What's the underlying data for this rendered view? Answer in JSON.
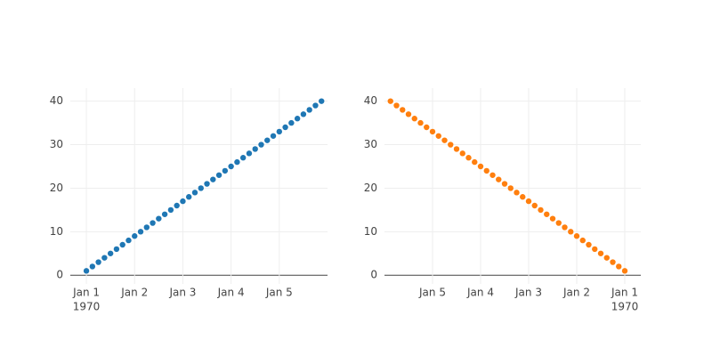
{
  "chart_data": [
    {
      "type": "scatter",
      "x": [
        "1970-01-01 00:00",
        "1970-01-01 03:00",
        "1970-01-01 06:00",
        "1970-01-01 09:00",
        "1970-01-01 12:00",
        "1970-01-01 15:00",
        "1970-01-01 18:00",
        "1970-01-01 21:00",
        "1970-01-02 00:00",
        "1970-01-02 03:00",
        "1970-01-02 06:00",
        "1970-01-02 09:00",
        "1970-01-02 12:00",
        "1970-01-02 15:00",
        "1970-01-02 18:00",
        "1970-01-02 21:00",
        "1970-01-03 00:00",
        "1970-01-03 03:00",
        "1970-01-03 06:00",
        "1970-01-03 09:00",
        "1970-01-03 12:00",
        "1970-01-03 15:00",
        "1970-01-03 18:00",
        "1970-01-03 21:00",
        "1970-01-04 00:00",
        "1970-01-04 03:00",
        "1970-01-04 06:00",
        "1970-01-04 09:00",
        "1970-01-04 12:00",
        "1970-01-04 15:00",
        "1970-01-04 18:00",
        "1970-01-04 21:00",
        "1970-01-05 00:00",
        "1970-01-05 03:00",
        "1970-01-05 06:00",
        "1970-01-05 09:00",
        "1970-01-05 12:00",
        "1970-01-05 15:00",
        "1970-01-05 18:00",
        "1970-01-05 21:00"
      ],
      "series": [
        {
          "color": "#1f77b4",
          "values": [
            1,
            2,
            3,
            4,
            5,
            6,
            7,
            8,
            9,
            10,
            11,
            12,
            13,
            14,
            15,
            16,
            17,
            18,
            19,
            20,
            21,
            22,
            23,
            24,
            25,
            26,
            27,
            28,
            29,
            30,
            31,
            32,
            33,
            34,
            35,
            36,
            37,
            38,
            39,
            40
          ]
        }
      ],
      "xlim": [
        "1969-12-31 16:00",
        "1970-01-06 00:00"
      ],
      "xticks": [
        {
          "value": "1970-01-01 00:00",
          "label": "Jan 1",
          "year": "1970"
        },
        {
          "value": "1970-01-02 00:00",
          "label": "Jan 2"
        },
        {
          "value": "1970-01-03 00:00",
          "label": "Jan 3"
        },
        {
          "value": "1970-01-04 00:00",
          "label": "Jan 4"
        },
        {
          "value": "1970-01-05 00:00",
          "label": "Jan 5"
        }
      ],
      "ylim": [
        -2,
        43
      ],
      "yticks": [
        0,
        10,
        20,
        30,
        40
      ],
      "grid": true
    },
    {
      "type": "scatter",
      "x": [
        "1970-01-01 00:00",
        "1970-01-01 03:00",
        "1970-01-01 06:00",
        "1970-01-01 09:00",
        "1970-01-01 12:00",
        "1970-01-01 15:00",
        "1970-01-01 18:00",
        "1970-01-01 21:00",
        "1970-01-02 00:00",
        "1970-01-02 03:00",
        "1970-01-02 06:00",
        "1970-01-02 09:00",
        "1970-01-02 12:00",
        "1970-01-02 15:00",
        "1970-01-02 18:00",
        "1970-01-02 21:00",
        "1970-01-03 00:00",
        "1970-01-03 03:00",
        "1970-01-03 06:00",
        "1970-01-03 09:00",
        "1970-01-03 12:00",
        "1970-01-03 15:00",
        "1970-01-03 18:00",
        "1970-01-03 21:00",
        "1970-01-04 00:00",
        "1970-01-04 03:00",
        "1970-01-04 06:00",
        "1970-01-04 09:00",
        "1970-01-04 12:00",
        "1970-01-04 15:00",
        "1970-01-04 18:00",
        "1970-01-04 21:00",
        "1970-01-05 00:00",
        "1970-01-05 03:00",
        "1970-01-05 06:00",
        "1970-01-05 09:00",
        "1970-01-05 12:00",
        "1970-01-05 15:00",
        "1970-01-05 18:00",
        "1970-01-05 21:00"
      ],
      "series": [
        {
          "color": "#ff7f0e",
          "values": [
            1,
            2,
            3,
            4,
            5,
            6,
            7,
            8,
            9,
            10,
            11,
            12,
            13,
            14,
            15,
            16,
            17,
            18,
            19,
            20,
            21,
            22,
            23,
            24,
            25,
            26,
            27,
            28,
            29,
            30,
            31,
            32,
            33,
            34,
            35,
            36,
            37,
            38,
            39,
            40
          ]
        }
      ],
      "xlim": [
        "1970-01-06 00:00",
        "1969-12-31 16:00"
      ],
      "xticks": [
        {
          "value": "1970-01-05 00:00",
          "label": "Jan 5"
        },
        {
          "value": "1970-01-04 00:00",
          "label": "Jan 4"
        },
        {
          "value": "1970-01-03 00:00",
          "label": "Jan 3"
        },
        {
          "value": "1970-01-02 00:00",
          "label": "Jan 2"
        },
        {
          "value": "1970-01-01 00:00",
          "label": "Jan 1",
          "year": "1970"
        }
      ],
      "ylim": [
        -2,
        43
      ],
      "yticks": [
        0,
        10,
        20,
        30,
        40
      ],
      "grid": true
    }
  ]
}
